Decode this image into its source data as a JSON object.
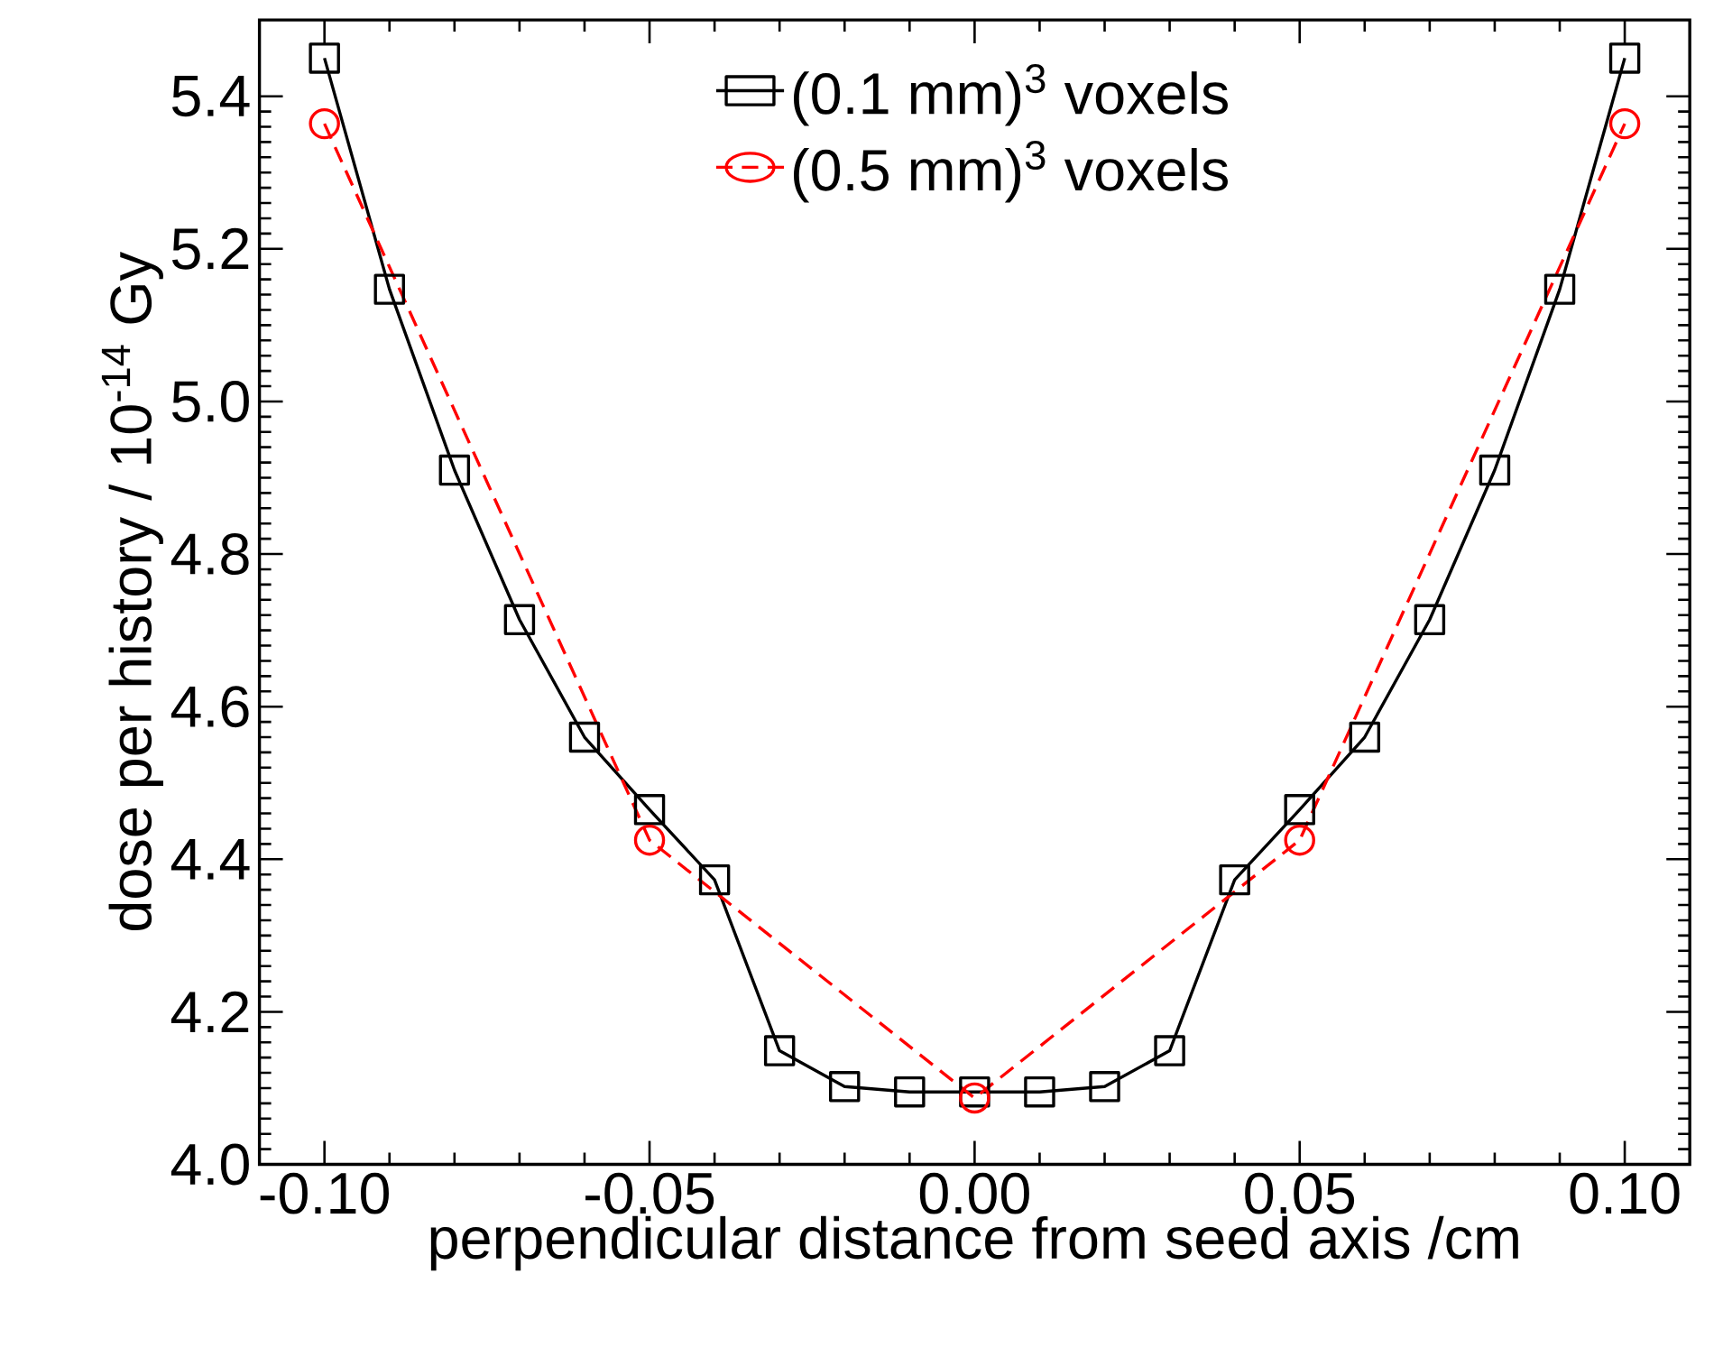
{
  "chart_data": {
    "type": "line",
    "xlabel": "perpendicular distance from seed axis /cm",
    "ylabel": "dose per history  / 10$^{-14}$ Gy",
    "xlim": [
      -0.11,
      0.11
    ],
    "ylim": [
      4.0,
      5.5
    ],
    "xticks": [
      {
        "value": -0.1,
        "label": "-0.10"
      },
      {
        "value": -0.05,
        "label": "-0.05"
      },
      {
        "value": 0,
        "label": "0.00"
      },
      {
        "value": 0.05,
        "label": "0.05"
      },
      {
        "value": 0.1,
        "label": "0.10"
      }
    ],
    "yticks": [
      {
        "value": 4.0,
        "label": "4.0"
      },
      4.2,
      4.4,
      4.6,
      4.8,
      {
        "value": 5.0,
        "label": "5.0"
      },
      5.2,
      5.4
    ],
    "legend": "top",
    "grid": false,
    "series": [
      {
        "name": "(0.1 mm)$^{3}$ voxels",
        "color": "#000000",
        "marker": "square",
        "line_style": "solid",
        "x": [
          -0.1,
          -0.09,
          -0.08,
          -0.07,
          -0.06,
          -0.05,
          -0.04,
          -0.03,
          -0.02,
          -0.01,
          0,
          0.01,
          0.02,
          0.03,
          0.04,
          0.05,
          0.06,
          0.07,
          0.08,
          0.09,
          0.1
        ],
        "values": [
          5.45,
          5.147,
          4.91,
          4.714,
          4.56,
          4.465,
          4.373,
          4.149,
          4.102,
          4.095,
          4.095,
          4.095,
          4.102,
          4.149,
          4.373,
          4.465,
          4.56,
          4.714,
          4.91,
          5.147,
          5.45
        ]
      },
      {
        "name": "(0.5 mm)$^{3}$ voxels",
        "color": "#ff0000",
        "marker": "circle",
        "line_style": "dashed",
        "x": [
          -0.1,
          -0.05,
          0,
          0.05,
          0.1
        ],
        "values": [
          5.364,
          4.425,
          4.087,
          4.425,
          5.364
        ]
      }
    ]
  }
}
